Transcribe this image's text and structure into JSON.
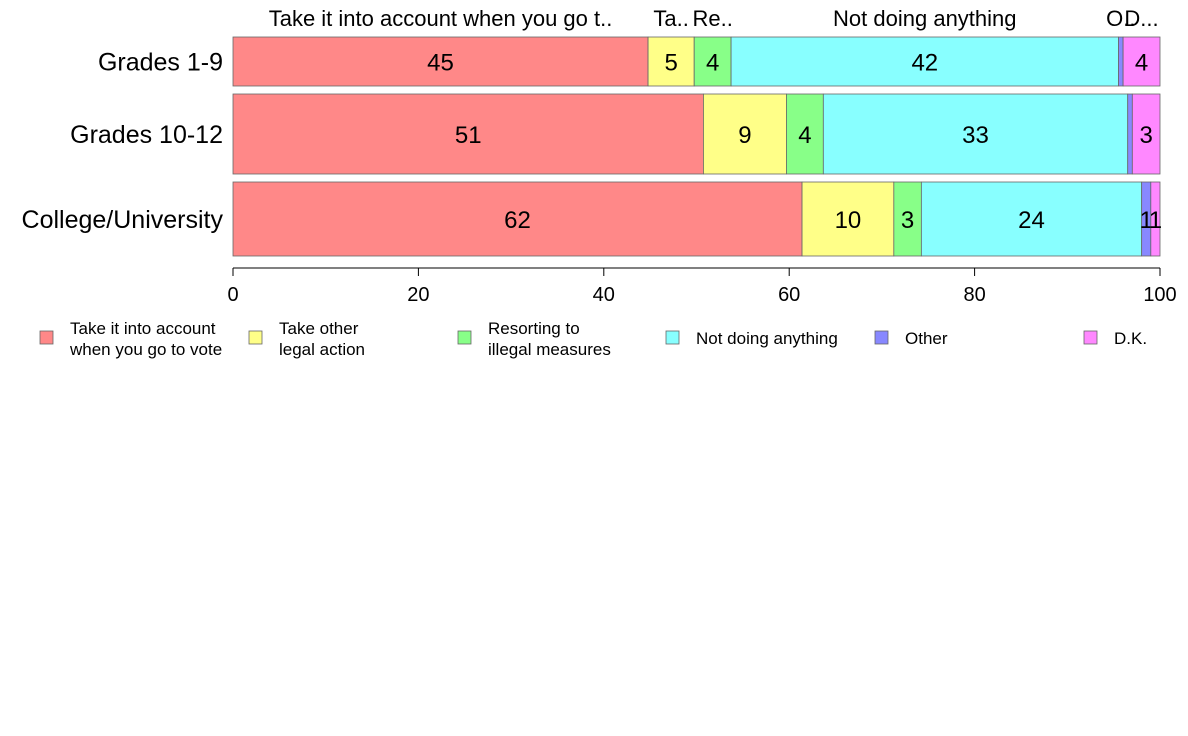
{
  "chart_data": {
    "type": "bar",
    "orientation": "horizontal",
    "stacked": true,
    "categories": [
      "Grades 1-9",
      "Grades 10-12",
      "College/University"
    ],
    "series": [
      {
        "name": "Take it into account when you go to vote",
        "short_label": "Take it into account when you go t..",
        "color": "#ff8888",
        "values": [
          45,
          51,
          62
        ]
      },
      {
        "name": "Take other legal action",
        "short_label": "Ta..",
        "color": "#ffff88",
        "values": [
          5,
          9,
          10
        ]
      },
      {
        "name": "Resorting to illegal measures",
        "short_label": "Re..",
        "color": "#88ff88",
        "values": [
          4,
          4,
          3
        ]
      },
      {
        "name": "Not doing anything",
        "short_label": "Not doing anything",
        "color": "#88ffff",
        "values": [
          42,
          33,
          24
        ]
      },
      {
        "name": "Other",
        "short_label": "O..",
        "color": "#8888ff",
        "values": [
          0.5,
          0.5,
          1
        ]
      },
      {
        "name": "D.K.",
        "short_label": "D...",
        "color": "#ff88ff",
        "values": [
          4,
          3,
          1
        ]
      }
    ],
    "data_labels": [
      [
        "45",
        "5",
        "4",
        "42",
        "",
        "4"
      ],
      [
        "51",
        "9",
        "4",
        "33",
        "",
        "3"
      ],
      [
        "62",
        "10",
        "3",
        "24",
        "1",
        "1"
      ]
    ],
    "legend": {
      "position": "bottom",
      "entries": [
        [
          "Take it into account",
          "when you go to vote"
        ],
        [
          "Take other",
          "legal action"
        ],
        [
          "Resorting to",
          "illegal measures"
        ],
        [
          "Not doing anything"
        ],
        [
          "Other"
        ],
        [
          "D.K."
        ]
      ]
    },
    "xlim": [
      0,
      100
    ],
    "xticks": [
      0,
      20,
      40,
      60,
      80,
      100
    ],
    "grid": false
  }
}
